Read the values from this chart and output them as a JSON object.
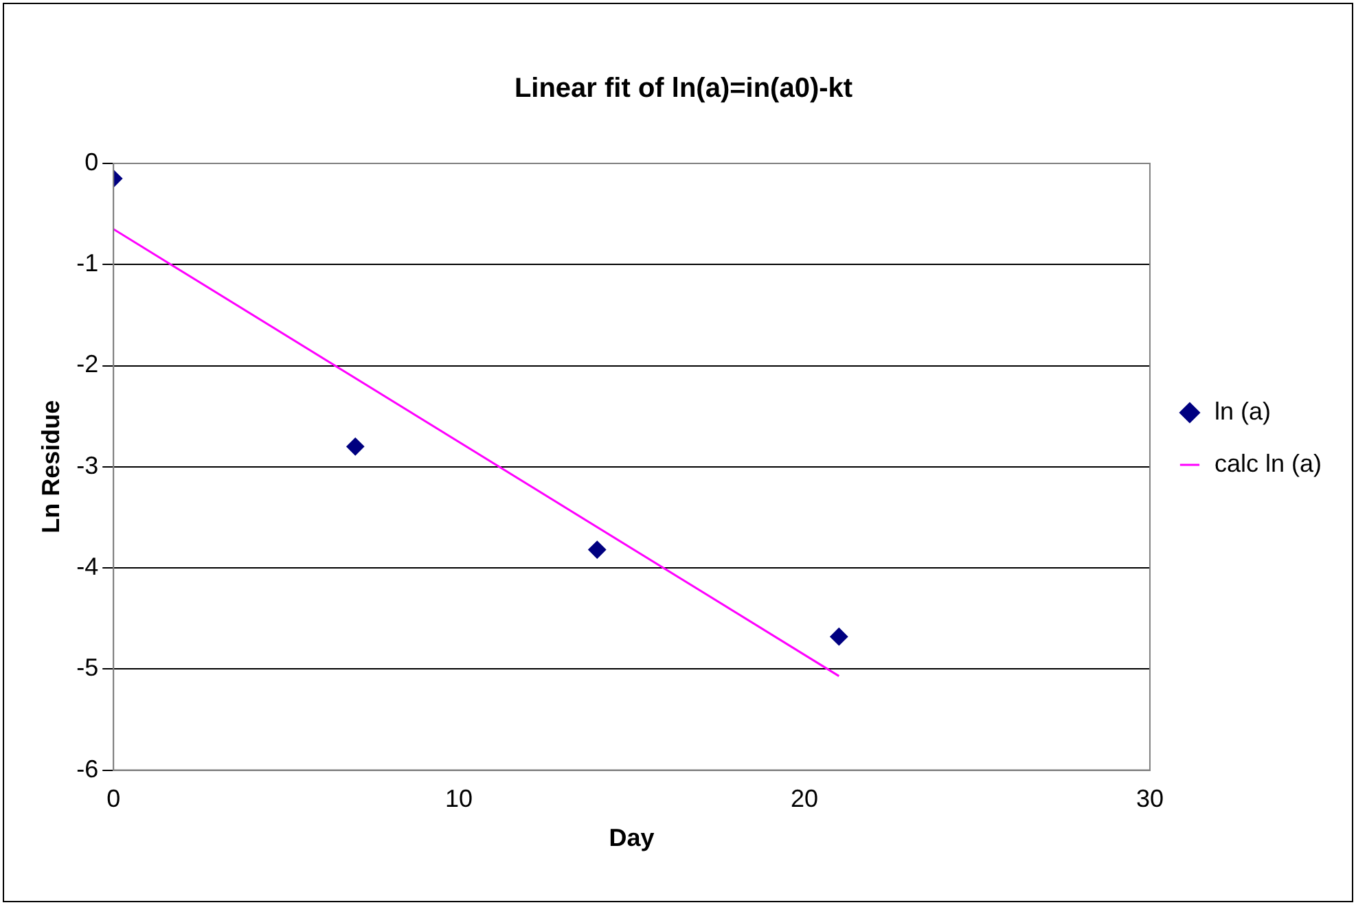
{
  "chart_data": {
    "type": "scatter",
    "title": "Linear fit of ln(a)=in(a0)-kt",
    "xlabel": "Day",
    "ylabel": "Ln Residue",
    "xlim": [
      0,
      30
    ],
    "xticks": [
      0,
      10,
      20,
      30
    ],
    "ylim": [
      -6,
      0
    ],
    "yticks": [
      0,
      -1,
      -2,
      -3,
      -4,
      -5,
      -6
    ],
    "grid": "y",
    "legend": "right",
    "series": [
      {
        "name": "ln (a)",
        "marker": "diamond",
        "color": "#000080",
        "x": [
          0,
          7,
          14,
          21
        ],
        "values": [
          -0.15,
          -2.8,
          -3.82,
          -4.68
        ]
      },
      {
        "name": "calc ln (a)",
        "type": "line",
        "marker": "none",
        "color": "#ff00ff",
        "x": [
          0,
          21
        ],
        "values": [
          -0.65,
          -5.07
        ]
      }
    ]
  }
}
